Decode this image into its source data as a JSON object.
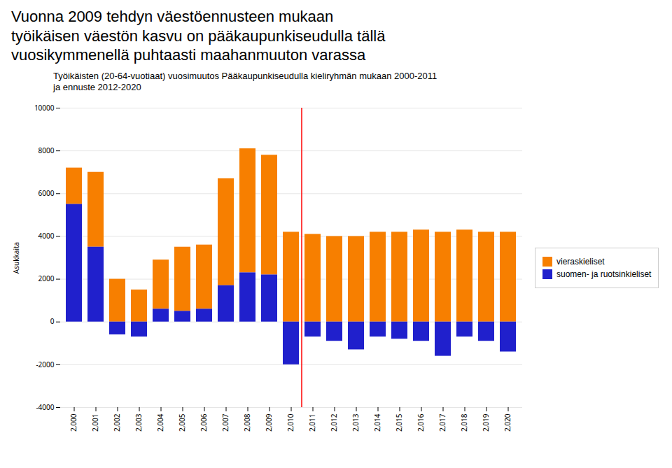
{
  "chart_data": {
    "type": "bar",
    "stacked": true,
    "title": "Vuonna 2009 tehdyn väestöennusteen mukaan\ntyöikäisen väestön kasvu on pääkaupunkiseudulla tällä\nvuosikymmenellä puhtaasti maahanmuuton varassa",
    "subtitle": "Työikäisten (20-64-vuotiaat) vuosimuutos Pääkaupunkiseudulla kieliryhmän mukaan 2000-2011\nja ennuste 2012-2020",
    "ylabel": "Asukkaita",
    "categories": [
      2000,
      2001,
      2002,
      2003,
      2004,
      2005,
      2006,
      2007,
      2008,
      2009,
      2010,
      2011,
      2012,
      2013,
      2014,
      2015,
      2016,
      2017,
      2018,
      2019,
      2020
    ],
    "series": [
      {
        "name": "vieraskieliset",
        "color": "#F77F00",
        "values": [
          1700,
          3500,
          2000,
          1500,
          2300,
          3000,
          3000,
          5000,
          5800,
          5600,
          4200,
          4100,
          4000,
          4000,
          4200,
          4200,
          4300,
          4200,
          4300,
          4200,
          4200
        ]
      },
      {
        "name": "suomen- ja ruotsinkieliset",
        "color": "#2020CC",
        "values": [
          5500,
          3500,
          -600,
          -700,
          600,
          500,
          600,
          1700,
          2300,
          2200,
          -2000,
          -700,
          -900,
          -1300,
          -700,
          -800,
          -900,
          -1600,
          -700,
          -900,
          -1400
        ]
      }
    ],
    "ylim": [
      -4000,
      10000
    ],
    "yticks": [
      -4000,
      -2000,
      0,
      2000,
      4000,
      6000,
      8000,
      10000
    ],
    "grid": true,
    "legend": "right",
    "vertical_line": {
      "after": 2010,
      "color": "red"
    }
  }
}
